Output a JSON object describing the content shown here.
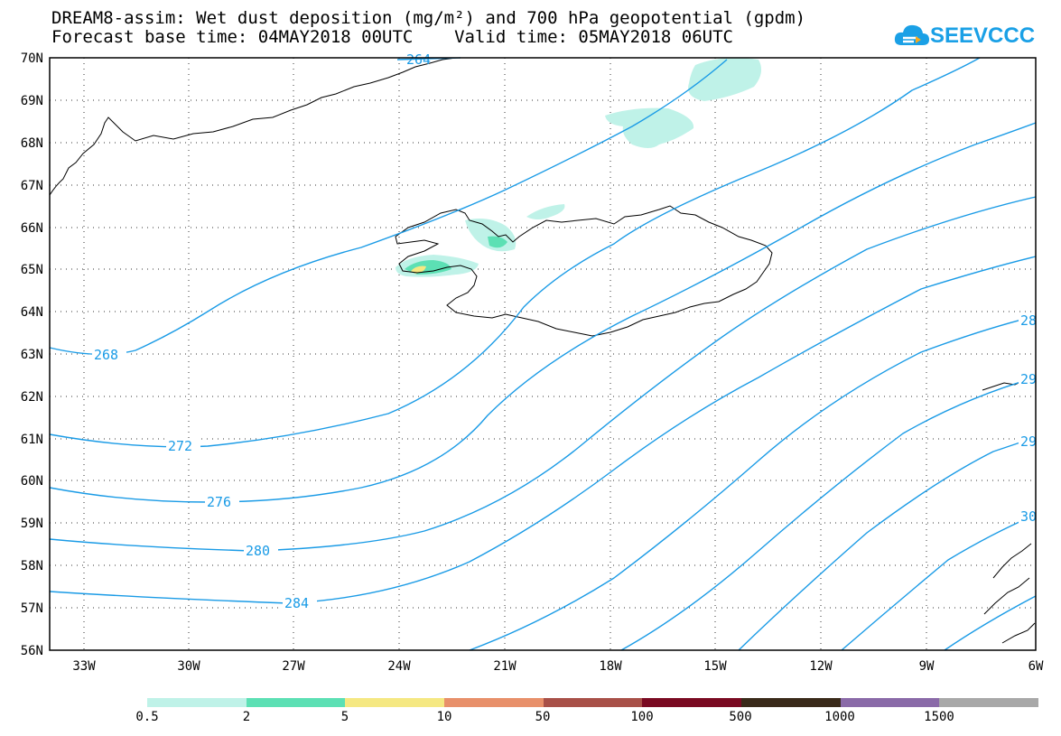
{
  "title_line1": "DREAM8-assim: Wet dust deposition (mg/m²) and 700 hPa geopotential (gpdm)",
  "title_line2": "Forecast base time: 04MAY2018 00UTC    Valid time: 05MAY2018 06UTC",
  "logo": {
    "text": "SEEVCCC",
    "icon": "cloud-logo-icon",
    "color": "#1aa0e6"
  },
  "lat_labels": [
    "70N",
    "69N",
    "68N",
    "67N",
    "66N",
    "65N",
    "64N",
    "63N",
    "62N",
    "61N",
    "60N",
    "59N",
    "58N",
    "57N",
    "56N"
  ],
  "lon_labels": [
    "33W",
    "30W",
    "27W",
    "24W",
    "21W",
    "18W",
    "15W",
    "12W",
    "9W",
    "6W"
  ],
  "contour_labels": {
    "c264": "264",
    "c268": "268",
    "c272": "272",
    "c276": "276",
    "c280": "280",
    "c284": "284",
    "c28x": "28",
    "c29a": "29",
    "c29b": "29",
    "c30": "30"
  },
  "contour_color": "#1a9be6",
  "legend": {
    "colors": [
      "#bff2e8",
      "#5ce0b4",
      "#f5e882",
      "#e8906a",
      "#a85048",
      "#7a0a22",
      "#3a2a1a",
      "#8a6aa8",
      "#a8a8a8"
    ],
    "labels": [
      "0.5",
      "2",
      "5",
      "10",
      "50",
      "100",
      "500",
      "1000",
      "1500"
    ]
  }
}
